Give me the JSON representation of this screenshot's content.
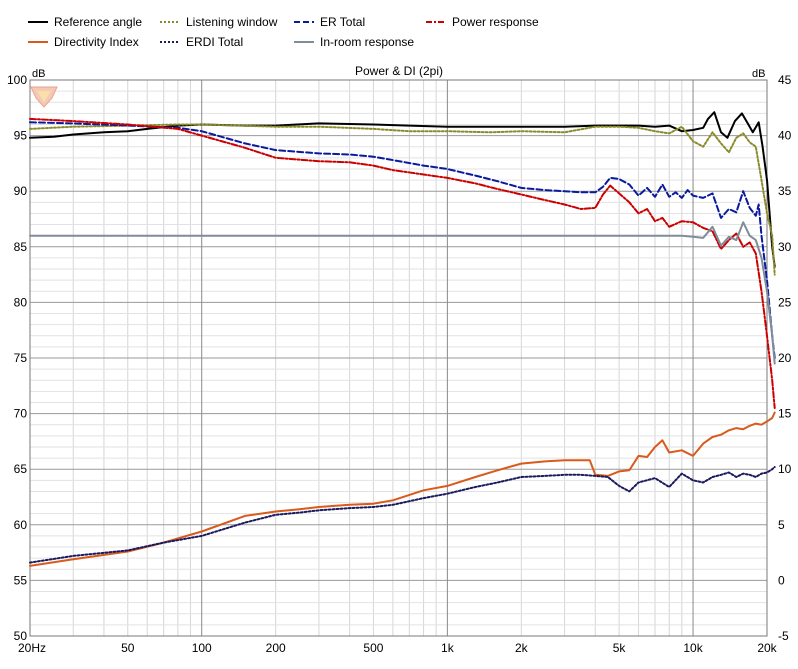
{
  "chart_data": {
    "type": "line",
    "title": "Power & DI (2pi)",
    "y_left_unit": "dB",
    "y_right_unit": "dB",
    "x_scale": "log",
    "xlim": [
      20,
      20000
    ],
    "ylim_left": [
      50,
      100
    ],
    "ylim_right": [
      -5,
      45
    ],
    "grid": true,
    "legend_position": "top",
    "x_ticks": [
      {
        "value": 20,
        "label": "20Hz"
      },
      {
        "value": 50,
        "label": "50"
      },
      {
        "value": 100,
        "label": "100"
      },
      {
        "value": 200,
        "label": "200"
      },
      {
        "value": 500,
        "label": "500"
      },
      {
        "value": 1000,
        "label": "1k"
      },
      {
        "value": 2000,
        "label": "2k"
      },
      {
        "value": 5000,
        "label": "5k"
      },
      {
        "value": 10000,
        "label": "10k"
      },
      {
        "value": 20000,
        "label": "20k"
      }
    ],
    "y_left_ticks": [
      "100",
      "95",
      "90",
      "85",
      "80",
      "75",
      "70",
      "65",
      "60",
      "55",
      "50"
    ],
    "y_right_ticks": [
      "45",
      "40",
      "35",
      "30",
      "25",
      "20",
      "15",
      "10",
      "5",
      "0",
      "-5"
    ],
    "series": [
      {
        "name": "Reference angle",
        "color": "#000000",
        "dash": "solid",
        "axis": "left",
        "points": [
          [
            20,
            94.8
          ],
          [
            25,
            94.9
          ],
          [
            30,
            95.1
          ],
          [
            40,
            95.3
          ],
          [
            50,
            95.4
          ],
          [
            60,
            95.6
          ],
          [
            80,
            95.9
          ],
          [
            100,
            96.0
          ],
          [
            150,
            95.9
          ],
          [
            200,
            95.9
          ],
          [
            300,
            96.1
          ],
          [
            500,
            96.0
          ],
          [
            700,
            95.9
          ],
          [
            1000,
            95.8
          ],
          [
            1500,
            95.8
          ],
          [
            2000,
            95.8
          ],
          [
            3000,
            95.8
          ],
          [
            4000,
            95.9
          ],
          [
            5000,
            95.9
          ],
          [
            6000,
            95.9
          ],
          [
            7000,
            95.8
          ],
          [
            8000,
            95.9
          ],
          [
            9000,
            95.4
          ],
          [
            10000,
            95.5
          ],
          [
            11000,
            95.7
          ],
          [
            11500,
            96.5
          ],
          [
            12200,
            97.1
          ],
          [
            13000,
            95.3
          ],
          [
            13800,
            94.8
          ],
          [
            14800,
            96.3
          ],
          [
            15800,
            97.0
          ],
          [
            16800,
            96.0
          ],
          [
            17500,
            95.3
          ],
          [
            18500,
            96.2
          ],
          [
            19200,
            94.0
          ],
          [
            20000,
            91.0
          ],
          [
            21000,
            85.0
          ],
          [
            21500,
            83.2
          ]
        ]
      },
      {
        "name": "Listening window",
        "color": "#8b8b2b",
        "dash": "dotted",
        "axis": "left",
        "points": [
          [
            20,
            95.6
          ],
          [
            30,
            95.8
          ],
          [
            50,
            95.9
          ],
          [
            80,
            96.0
          ],
          [
            100,
            96.0
          ],
          [
            200,
            95.8
          ],
          [
            300,
            95.8
          ],
          [
            500,
            95.6
          ],
          [
            700,
            95.4
          ],
          [
            1000,
            95.4
          ],
          [
            1500,
            95.3
          ],
          [
            2000,
            95.4
          ],
          [
            3000,
            95.3
          ],
          [
            4000,
            95.8
          ],
          [
            5000,
            95.8
          ],
          [
            6000,
            95.7
          ],
          [
            7000,
            95.4
          ],
          [
            8000,
            95.2
          ],
          [
            9000,
            95.8
          ],
          [
            10000,
            94.5
          ],
          [
            11000,
            94.0
          ],
          [
            12000,
            95.3
          ],
          [
            13000,
            94.3
          ],
          [
            14000,
            93.5
          ],
          [
            15000,
            94.8
          ],
          [
            16000,
            95.2
          ],
          [
            17000,
            94.4
          ],
          [
            18000,
            94.0
          ],
          [
            19000,
            91.0
          ],
          [
            20000,
            88.0
          ],
          [
            21000,
            86.0
          ],
          [
            21500,
            82.5
          ]
        ]
      },
      {
        "name": "ER Total",
        "color": "#0a1aa0",
        "dash": "dashed",
        "axis": "left",
        "points": [
          [
            20,
            96.2
          ],
          [
            30,
            96.1
          ],
          [
            50,
            95.9
          ],
          [
            80,
            95.7
          ],
          [
            100,
            95.4
          ],
          [
            150,
            94.3
          ],
          [
            200,
            93.7
          ],
          [
            300,
            93.4
          ],
          [
            400,
            93.3
          ],
          [
            500,
            93.1
          ],
          [
            600,
            92.8
          ],
          [
            800,
            92.3
          ],
          [
            1000,
            92.0
          ],
          [
            1300,
            91.4
          ],
          [
            1600,
            90.9
          ],
          [
            2000,
            90.3
          ],
          [
            2500,
            90.1
          ],
          [
            3000,
            90.0
          ],
          [
            3500,
            89.9
          ],
          [
            4000,
            89.9
          ],
          [
            4300,
            90.4
          ],
          [
            4600,
            91.2
          ],
          [
            5000,
            91.1
          ],
          [
            5500,
            90.6
          ],
          [
            6000,
            89.6
          ],
          [
            6500,
            90.3
          ],
          [
            7000,
            89.5
          ],
          [
            7500,
            90.6
          ],
          [
            8000,
            89.5
          ],
          [
            8500,
            89.9
          ],
          [
            9000,
            89.4
          ],
          [
            9500,
            90.1
          ],
          [
            10000,
            89.6
          ],
          [
            11000,
            89.4
          ],
          [
            12000,
            89.8
          ],
          [
            13000,
            87.6
          ],
          [
            14000,
            88.4
          ],
          [
            15000,
            88.1
          ],
          [
            16000,
            90.0
          ],
          [
            17000,
            88.5
          ],
          [
            18000,
            87.8
          ],
          [
            18500,
            88.8
          ],
          [
            19000,
            86.0
          ],
          [
            20000,
            82.0
          ],
          [
            21000,
            77.0
          ],
          [
            21500,
            75.0
          ]
        ]
      },
      {
        "name": "Power response",
        "color": "#cc0000",
        "dash": "dashdot",
        "axis": "left",
        "points": [
          [
            20,
            96.5
          ],
          [
            30,
            96.3
          ],
          [
            50,
            96.0
          ],
          [
            80,
            95.6
          ],
          [
            100,
            95.0
          ],
          [
            150,
            93.9
          ],
          [
            200,
            93.0
          ],
          [
            300,
            92.7
          ],
          [
            400,
            92.6
          ],
          [
            500,
            92.3
          ],
          [
            600,
            91.9
          ],
          [
            800,
            91.5
          ],
          [
            1000,
            91.2
          ],
          [
            1300,
            90.7
          ],
          [
            1600,
            90.2
          ],
          [
            2000,
            89.7
          ],
          [
            2500,
            89.2
          ],
          [
            3000,
            88.8
          ],
          [
            3500,
            88.4
          ],
          [
            4000,
            88.5
          ],
          [
            4300,
            89.7
          ],
          [
            4600,
            90.5
          ],
          [
            5000,
            89.8
          ],
          [
            5500,
            89.0
          ],
          [
            6000,
            88.0
          ],
          [
            6500,
            88.4
          ],
          [
            7000,
            87.3
          ],
          [
            7500,
            87.6
          ],
          [
            8000,
            86.8
          ],
          [
            9000,
            87.3
          ],
          [
            10000,
            87.2
          ],
          [
            11000,
            86.7
          ],
          [
            12000,
            86.4
          ],
          [
            13000,
            84.8
          ],
          [
            14000,
            85.6
          ],
          [
            15000,
            86.2
          ],
          [
            16000,
            85.0
          ],
          [
            17000,
            85.4
          ],
          [
            18000,
            84.4
          ],
          [
            19000,
            81.0
          ],
          [
            20000,
            77.0
          ],
          [
            21000,
            73.0
          ],
          [
            21500,
            70.5
          ]
        ]
      },
      {
        "name": "Directivity Index",
        "color": "#d95a1a",
        "dash": "solid",
        "axis": "right",
        "points": [
          [
            20,
            1.3
          ],
          [
            30,
            1.9
          ],
          [
            50,
            2.6
          ],
          [
            70,
            3.4
          ],
          [
            100,
            4.4
          ],
          [
            150,
            5.8
          ],
          [
            200,
            6.2
          ],
          [
            250,
            6.4
          ],
          [
            300,
            6.6
          ],
          [
            400,
            6.8
          ],
          [
            500,
            6.9
          ],
          [
            600,
            7.2
          ],
          [
            800,
            8.1
          ],
          [
            1000,
            8.5
          ],
          [
            1300,
            9.3
          ],
          [
            1600,
            9.9
          ],
          [
            2000,
            10.5
          ],
          [
            2500,
            10.7
          ],
          [
            3000,
            10.8
          ],
          [
            3500,
            10.8
          ],
          [
            3800,
            10.8
          ],
          [
            4000,
            9.5
          ],
          [
            4500,
            9.4
          ],
          [
            5000,
            9.8
          ],
          [
            5500,
            9.9
          ],
          [
            6000,
            11.2
          ],
          [
            6500,
            11.1
          ],
          [
            7000,
            12.0
          ],
          [
            7500,
            12.6
          ],
          [
            8000,
            11.5
          ],
          [
            9000,
            11.7
          ],
          [
            10000,
            11.2
          ],
          [
            11000,
            12.3
          ],
          [
            12000,
            12.9
          ],
          [
            13000,
            13.1
          ],
          [
            14000,
            13.5
          ],
          [
            15000,
            13.7
          ],
          [
            16000,
            13.6
          ],
          [
            17000,
            13.9
          ],
          [
            18000,
            14.1
          ],
          [
            19000,
            14.0
          ],
          [
            20000,
            14.3
          ],
          [
            21000,
            14.6
          ],
          [
            21500,
            15.1
          ]
        ]
      },
      {
        "name": "ERDI Total",
        "color": "#1a1a5e",
        "dash": "dotted",
        "axis": "right",
        "points": [
          [
            20,
            1.6
          ],
          [
            30,
            2.2
          ],
          [
            50,
            2.7
          ],
          [
            70,
            3.4
          ],
          [
            100,
            4.0
          ],
          [
            150,
            5.2
          ],
          [
            200,
            5.9
          ],
          [
            250,
            6.1
          ],
          [
            300,
            6.3
          ],
          [
            400,
            6.5
          ],
          [
            500,
            6.6
          ],
          [
            600,
            6.8
          ],
          [
            800,
            7.4
          ],
          [
            1000,
            7.8
          ],
          [
            1300,
            8.4
          ],
          [
            1600,
            8.8
          ],
          [
            2000,
            9.3
          ],
          [
            2500,
            9.4
          ],
          [
            3000,
            9.5
          ],
          [
            3500,
            9.5
          ],
          [
            4000,
            9.4
          ],
          [
            4500,
            9.3
          ],
          [
            5000,
            8.5
          ],
          [
            5500,
            8.0
          ],
          [
            6000,
            8.8
          ],
          [
            7000,
            9.2
          ],
          [
            8000,
            8.4
          ],
          [
            9000,
            9.6
          ],
          [
            10000,
            9.0
          ],
          [
            11000,
            8.8
          ],
          [
            12000,
            9.3
          ],
          [
            13000,
            9.5
          ],
          [
            14000,
            9.7
          ],
          [
            15000,
            9.3
          ],
          [
            16000,
            9.6
          ],
          [
            17000,
            9.5
          ],
          [
            18000,
            9.3
          ],
          [
            19000,
            9.6
          ],
          [
            20000,
            9.7
          ],
          [
            21000,
            10.0
          ],
          [
            21500,
            10.2
          ]
        ]
      },
      {
        "name": "In-room response",
        "color": "#7f8c99",
        "dash": "solid",
        "axis": "left",
        "points": [
          [
            20,
            86.0
          ],
          [
            30,
            86.0
          ],
          [
            50,
            86.0
          ],
          [
            100,
            86.0
          ],
          [
            200,
            86.0
          ],
          [
            500,
            86.0
          ],
          [
            1000,
            86.0
          ],
          [
            2000,
            86.0
          ],
          [
            3000,
            86.0
          ],
          [
            4000,
            86.0
          ],
          [
            4500,
            86.0
          ],
          [
            5000,
            86.0
          ],
          [
            5500,
            86.0
          ],
          [
            6000,
            86.0
          ],
          [
            7000,
            86.0
          ],
          [
            8000,
            86.0
          ],
          [
            9000,
            86.0
          ],
          [
            10000,
            85.9
          ],
          [
            11000,
            85.8
          ],
          [
            12000,
            86.8
          ],
          [
            13000,
            85.1
          ],
          [
            14000,
            85.9
          ],
          [
            15000,
            85.6
          ],
          [
            16000,
            87.2
          ],
          [
            17000,
            86.0
          ],
          [
            18000,
            85.6
          ],
          [
            19000,
            84.0
          ],
          [
            20000,
            81.0
          ],
          [
            21000,
            77.0
          ],
          [
            21500,
            74.5
          ]
        ]
      }
    ]
  }
}
